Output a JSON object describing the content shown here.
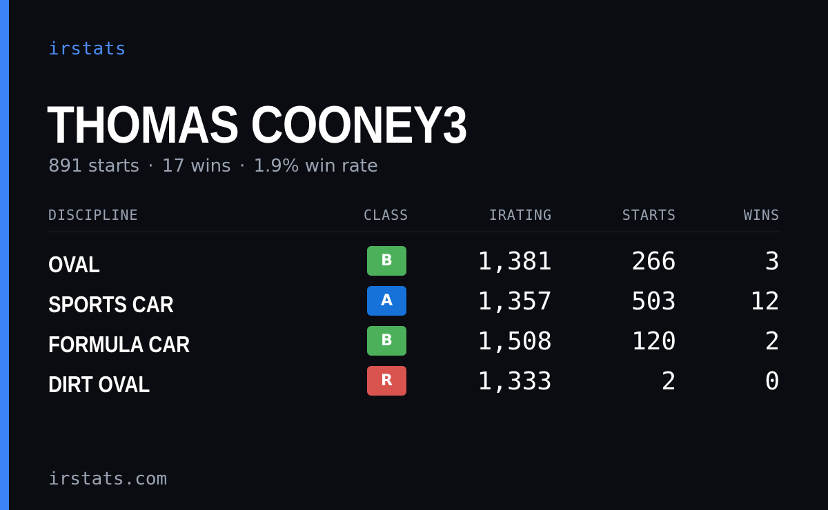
{
  "brand": "irstats",
  "driver_name": "THOMAS COONEY3",
  "summary": {
    "starts": "891 starts",
    "wins": "17 wins",
    "win_rate": "1.9% win rate",
    "separator": "·"
  },
  "table": {
    "headers": {
      "discipline": "DISCIPLINE",
      "class": "CLASS",
      "irating": "IRATING",
      "starts": "STARTS",
      "wins": "WINS"
    },
    "rows": [
      {
        "discipline": "OVAL",
        "class": "B",
        "class_color": "#4cb05a",
        "irating": "1,381",
        "starts": "266",
        "wins": "3"
      },
      {
        "discipline": "SPORTS CAR",
        "class": "A",
        "class_color": "#1672d8",
        "irating": "1,357",
        "starts": "503",
        "wins": "12"
      },
      {
        "discipline": "FORMULA CAR",
        "class": "B",
        "class_color": "#4cb05a",
        "irating": "1,508",
        "starts": "120",
        "wins": "2"
      },
      {
        "discipline": "DIRT OVAL",
        "class": "R",
        "class_color": "#d9534f",
        "irating": "1,333",
        "starts": "2",
        "wins": "0"
      }
    ]
  },
  "footer": "irstats.com",
  "colors": {
    "background": "#0a0c12",
    "accent": "#3b82f6",
    "muted_text": "#9aa3b2"
  }
}
